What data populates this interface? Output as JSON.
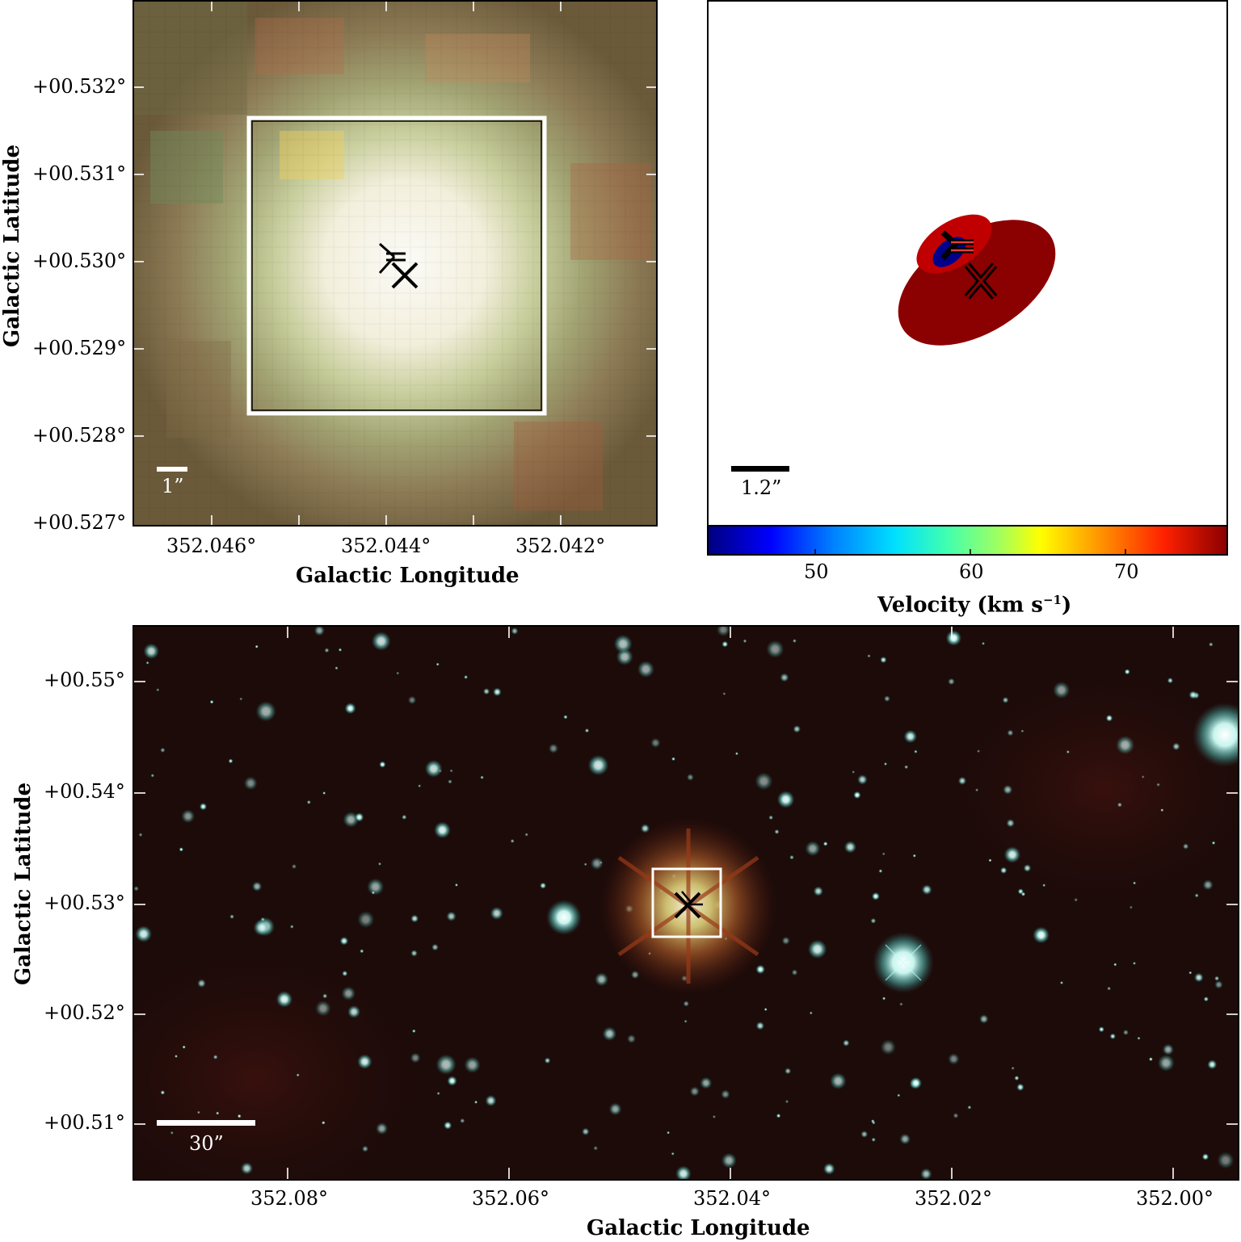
{
  "panel_top_left": {
    "x_ticks": [
      "352.046°",
      "352.044°",
      "352.042°"
    ],
    "y_ticks": [
      "+00.532°",
      "+00.531°",
      "+00.530°",
      "+00.529°",
      "+00.528°",
      "+00.527°"
    ],
    "xlabel": "Galactic Longitude",
    "ylabel": "Galactic Latitude",
    "scale_bar": "1”"
  },
  "panel_top_right": {
    "scale_bar": "1.2”",
    "colorbar_ticks": [
      "50",
      "60",
      "70"
    ],
    "colorbar_label": "Velocity (km s",
    "colorbar_label_sup": "−1",
    "colorbar_label_end": ")",
    "colors": {
      "blueshifted": "#00008b",
      "redshifted": "#8b0000",
      "bright_red": "#c00000"
    }
  },
  "panel_bottom": {
    "x_ticks": [
      "352.08°",
      "352.06°",
      "352.04°",
      "352.02°",
      "352.00°"
    ],
    "y_ticks": [
      "+00.55°",
      "+00.54°",
      "+00.53°",
      "+00.52°",
      "+00.51°"
    ],
    "xlabel": "Galactic Longitude",
    "ylabel": "Galactic Latitude",
    "scale_bar": "30”"
  }
}
